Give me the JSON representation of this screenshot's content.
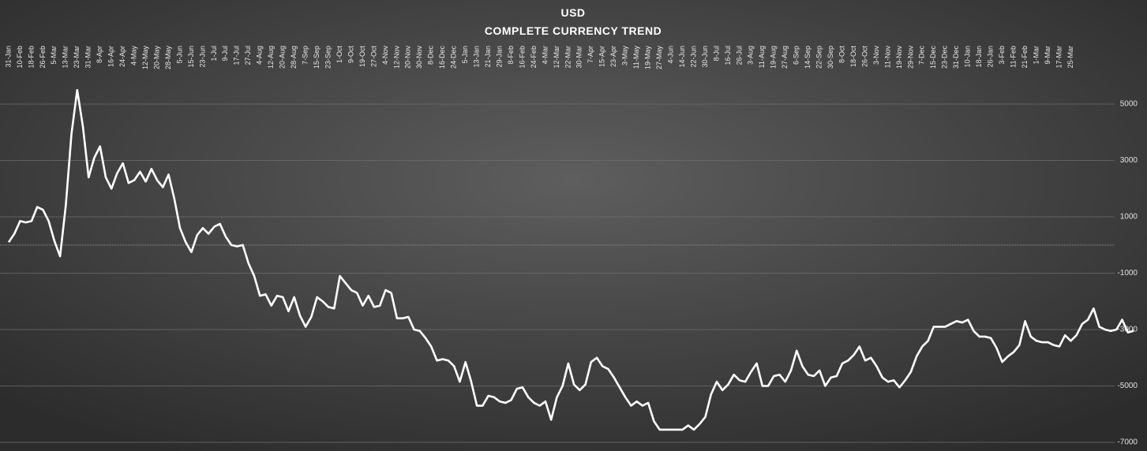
{
  "chart_data": {
    "type": "line",
    "title": "USD",
    "subtitle": "COMPLETE CURRENCY TREND",
    "categories": [
      "31-Jan",
      null,
      "10-Feb",
      null,
      "18-Feb",
      null,
      "26-Feb",
      null,
      "5-Mar",
      null,
      "13-Mar",
      null,
      "23-Mar",
      null,
      "31-Mar",
      null,
      "8-Apr",
      null,
      "16-Apr",
      null,
      "24-Apr",
      null,
      "4-May",
      null,
      "12-May",
      null,
      "20-May",
      null,
      "28-May",
      null,
      "5-Jun",
      null,
      "15-Jun",
      null,
      "23-Jun",
      null,
      "1-Jul",
      null,
      "9-Jul",
      null,
      "17-Jul",
      null,
      "27-Jul",
      null,
      "4-Aug",
      null,
      "12-Aug",
      null,
      "20-Aug",
      null,
      "28-Aug",
      null,
      "7-Sep",
      null,
      "15-Sep",
      null,
      "23-Sep",
      null,
      "1-Oct",
      null,
      "9-Oct",
      null,
      "19-Oct",
      null,
      "27-Oct",
      null,
      "4-Nov",
      null,
      "12-Nov",
      null,
      "20-Nov",
      null,
      "30-Nov",
      null,
      "8-Dec",
      null,
      "16-Dec",
      null,
      "24-Dec",
      null,
      "5-Jan",
      null,
      "13-Jan",
      null,
      "21-Jan",
      null,
      "29-Jan",
      null,
      "8-Feb",
      null,
      "16-Feb",
      null,
      "24-Feb",
      null,
      "4-Mar",
      null,
      "12-Mar",
      null,
      "22-Mar",
      null,
      "30-Mar",
      null,
      "7-Apr",
      null,
      "15-Apr",
      null,
      "23-Apr",
      null,
      "3-May",
      null,
      "11-May",
      null,
      "19-May",
      null,
      "27-May",
      null,
      "4-Jun",
      null,
      "14-Jun",
      null,
      "22-Jun",
      null,
      "30-Jun",
      null,
      "8-Jul",
      null,
      "16-Jul",
      null,
      "26-Jul",
      null,
      "3-Aug",
      null,
      "11-Aug",
      null,
      "19-Aug",
      null,
      "27-Aug",
      null,
      "6-Sep",
      null,
      "14-Sep",
      null,
      "22-Sep",
      null,
      "30-Sep",
      null,
      "8-Oct",
      null,
      "18-Oct",
      null,
      "26-Oct",
      null,
      "3-Nov",
      null,
      "11-Nov",
      null,
      "19-Nov",
      null,
      "29-Nov",
      null,
      "7-Dec",
      null,
      "15-Dec",
      null,
      "23-Dec",
      null,
      "31-Dec",
      null,
      "10-Jan",
      null,
      "18-Jan",
      null,
      "26-Jan",
      null,
      "3-Feb",
      null,
      "11-Feb",
      null,
      "21-Feb",
      null,
      "1-Mar",
      null,
      "9-Mar",
      null,
      "17-Mar",
      null,
      "25-Mar",
      null,
      null,
      null,
      null,
      null,
      null,
      null,
      null,
      null,
      null,
      null
    ],
    "values": [
      100,
      400,
      850,
      800,
      850,
      1350,
      1250,
      850,
      150,
      -400,
      1400,
      3950,
      5500,
      4200,
      2400,
      3100,
      3500,
      2400,
      2000,
      2550,
      2900,
      2200,
      2300,
      2600,
      2250,
      2700,
      2300,
      2050,
      2500,
      1650,
      600,
      100,
      -250,
      350,
      600,
      400,
      650,
      750,
      300,
      0,
      -50,
      0,
      -650,
      -1100,
      -1800,
      -1750,
      -2150,
      -1800,
      -1850,
      -2350,
      -1850,
      -2500,
      -2900,
      -2550,
      -1850,
      -2000,
      -2200,
      -2250,
      -1100,
      -1350,
      -1600,
      -1700,
      -2150,
      -1800,
      -2200,
      -2150,
      -1600,
      -1700,
      -2600,
      -2600,
      -2550,
      -3000,
      -3050,
      -3300,
      -3600,
      -4100,
      -4050,
      -4100,
      -4300,
      -4850,
      -4150,
      -4850,
      -5700,
      -5700,
      -5350,
      -5400,
      -5550,
      -5600,
      -5500,
      -5100,
      -5050,
      -5400,
      -5600,
      -5700,
      -5550,
      -6200,
      -5400,
      -5000,
      -4200,
      -4950,
      -5150,
      -4950,
      -4150,
      -4000,
      -4300,
      -4400,
      -4700,
      -5050,
      -5400,
      -5700,
      -5550,
      -5700,
      -5600,
      -6250,
      -6550,
      -6550,
      -6550,
      -6550,
      -6550,
      -6400,
      -6550,
      -6350,
      -6100,
      -5300,
      -4850,
      -5150,
      -4950,
      -4600,
      -4800,
      -4850,
      -4500,
      -4200,
      -5000,
      -5000,
      -4650,
      -4600,
      -4850,
      -4450,
      -3750,
      -4300,
      -4600,
      -4650,
      -4450,
      -5000,
      -4700,
      -4650,
      -4200,
      -4100,
      -3900,
      -3600,
      -4100,
      -4000,
      -4300,
      -4700,
      -4850,
      -4800,
      -5050,
      -4800,
      -4500,
      -3950,
      -3600,
      -3400,
      -2900,
      -2900,
      -2900,
      -2800,
      -2700,
      -2750,
      -2650,
      -3050,
      -3250,
      -3250,
      -3300,
      -3650,
      -4150,
      -3950,
      -3800,
      -3550,
      -2700,
      -3250,
      -3400,
      -3450,
      -3450,
      -3550,
      -3600,
      -3200,
      -3400,
      -3200,
      -2800,
      -2650,
      -2250,
      -2900,
      -3000,
      -3050,
      -3000,
      -2650,
      -3100,
      -3050
    ],
    "color": "#ffffff",
    "ylim": [
      -7000,
      5800
    ],
    "yticks": [
      -7000,
      -5000,
      -3000,
      -1000,
      1000,
      3000,
      5000
    ],
    "grid": true
  }
}
